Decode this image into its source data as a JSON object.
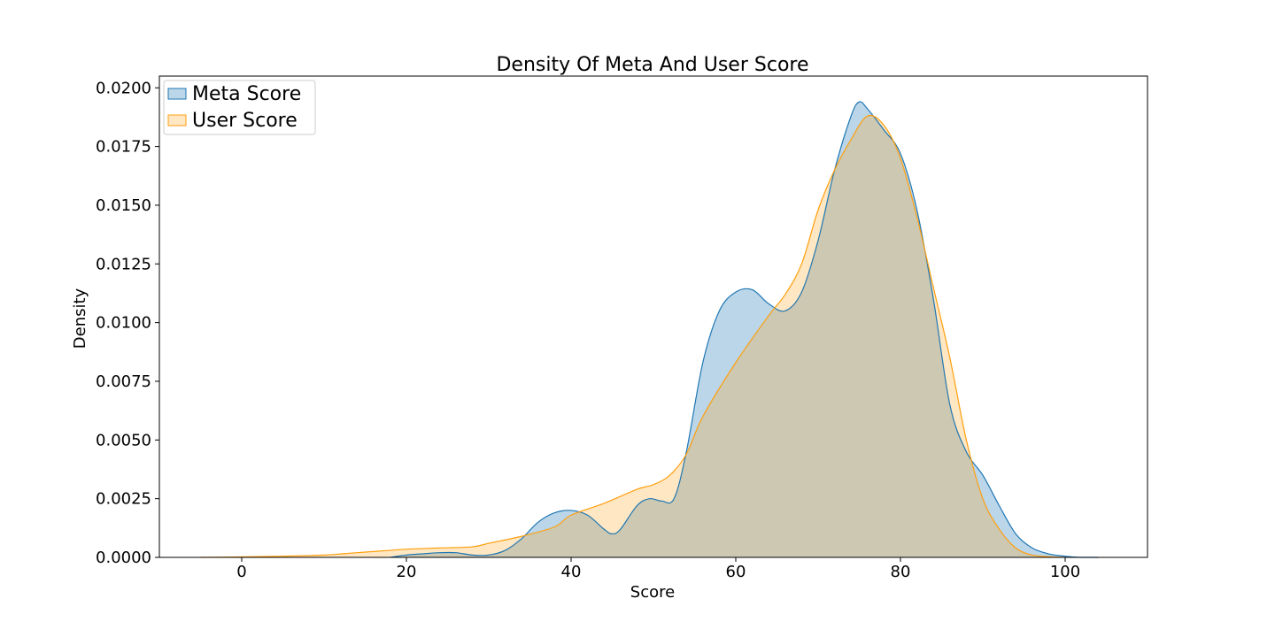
{
  "chart_data": {
    "type": "area",
    "title": "Density Of Meta And User Score",
    "xlabel": "Score",
    "ylabel": "Density",
    "xlim": [
      -10,
      110
    ],
    "ylim": [
      0,
      0.0205
    ],
    "x_ticks": [
      0,
      20,
      40,
      60,
      80,
      100
    ],
    "y_ticks": [
      0.0,
      0.0025,
      0.005,
      0.0075,
      0.01,
      0.0125,
      0.015,
      0.0175,
      0.02
    ],
    "y_tick_labels": [
      "0.0000",
      "0.0025",
      "0.0050",
      "0.0075",
      "0.0100",
      "0.0125",
      "0.0150",
      "0.0175",
      "0.0200"
    ],
    "grid": false,
    "legend_position": "top-left",
    "series": [
      {
        "name": "Meta Score",
        "color": "#1f77b4",
        "fill_opacity": 0.3,
        "x": [
          18,
          20,
          22,
          24,
          26,
          28,
          30,
          32,
          34,
          36,
          38,
          40,
          42,
          44,
          45,
          46,
          48,
          49.5,
          51,
          52.5,
          54,
          56,
          58,
          60,
          62,
          64,
          66,
          68,
          70,
          72,
          74,
          75,
          76,
          78,
          80,
          82,
          84,
          86,
          88,
          90,
          92,
          94,
          96,
          98,
          100,
          102,
          104
        ],
        "y": [
          0.0,
          0.0001,
          0.00015,
          0.0002,
          0.0002,
          0.0001,
          0.0001,
          0.0003,
          0.0008,
          0.0015,
          0.0019,
          0.002,
          0.0018,
          0.0012,
          0.001,
          0.0012,
          0.0022,
          0.0025,
          0.0024,
          0.0025,
          0.0045,
          0.0083,
          0.0105,
          0.0113,
          0.0114,
          0.0108,
          0.0105,
          0.0113,
          0.0135,
          0.0165,
          0.0188,
          0.0194,
          0.0191,
          0.0182,
          0.0172,
          0.0148,
          0.011,
          0.0065,
          0.0045,
          0.0035,
          0.0022,
          0.001,
          0.0004,
          0.00015,
          5e-05,
          0.0,
          0.0
        ]
      },
      {
        "name": "User Score",
        "color": "#ff9f0e",
        "fill_opacity": 0.25,
        "x": [
          -5,
          0,
          5,
          10,
          14,
          18,
          20,
          24,
          28,
          30,
          34,
          38,
          40,
          44,
          48,
          50,
          52,
          54,
          56,
          60,
          64,
          66,
          68,
          70,
          72,
          74,
          76,
          78,
          80,
          82,
          84,
          86,
          88,
          90,
          92,
          94,
          96,
          98,
          100
        ],
        "y": [
          0.0,
          2e-05,
          5e-05,
          0.0001,
          0.0002,
          0.0003,
          0.00035,
          0.0004,
          0.00045,
          0.0006,
          0.0009,
          0.0013,
          0.0018,
          0.0023,
          0.0029,
          0.0031,
          0.0035,
          0.0044,
          0.006,
          0.0083,
          0.0103,
          0.0112,
          0.0125,
          0.0148,
          0.0165,
          0.0178,
          0.0188,
          0.0184,
          0.017,
          0.0145,
          0.0115,
          0.0085,
          0.005,
          0.0025,
          0.0012,
          0.0004,
          0.0001,
          3e-05,
          0.0
        ]
      }
    ]
  }
}
